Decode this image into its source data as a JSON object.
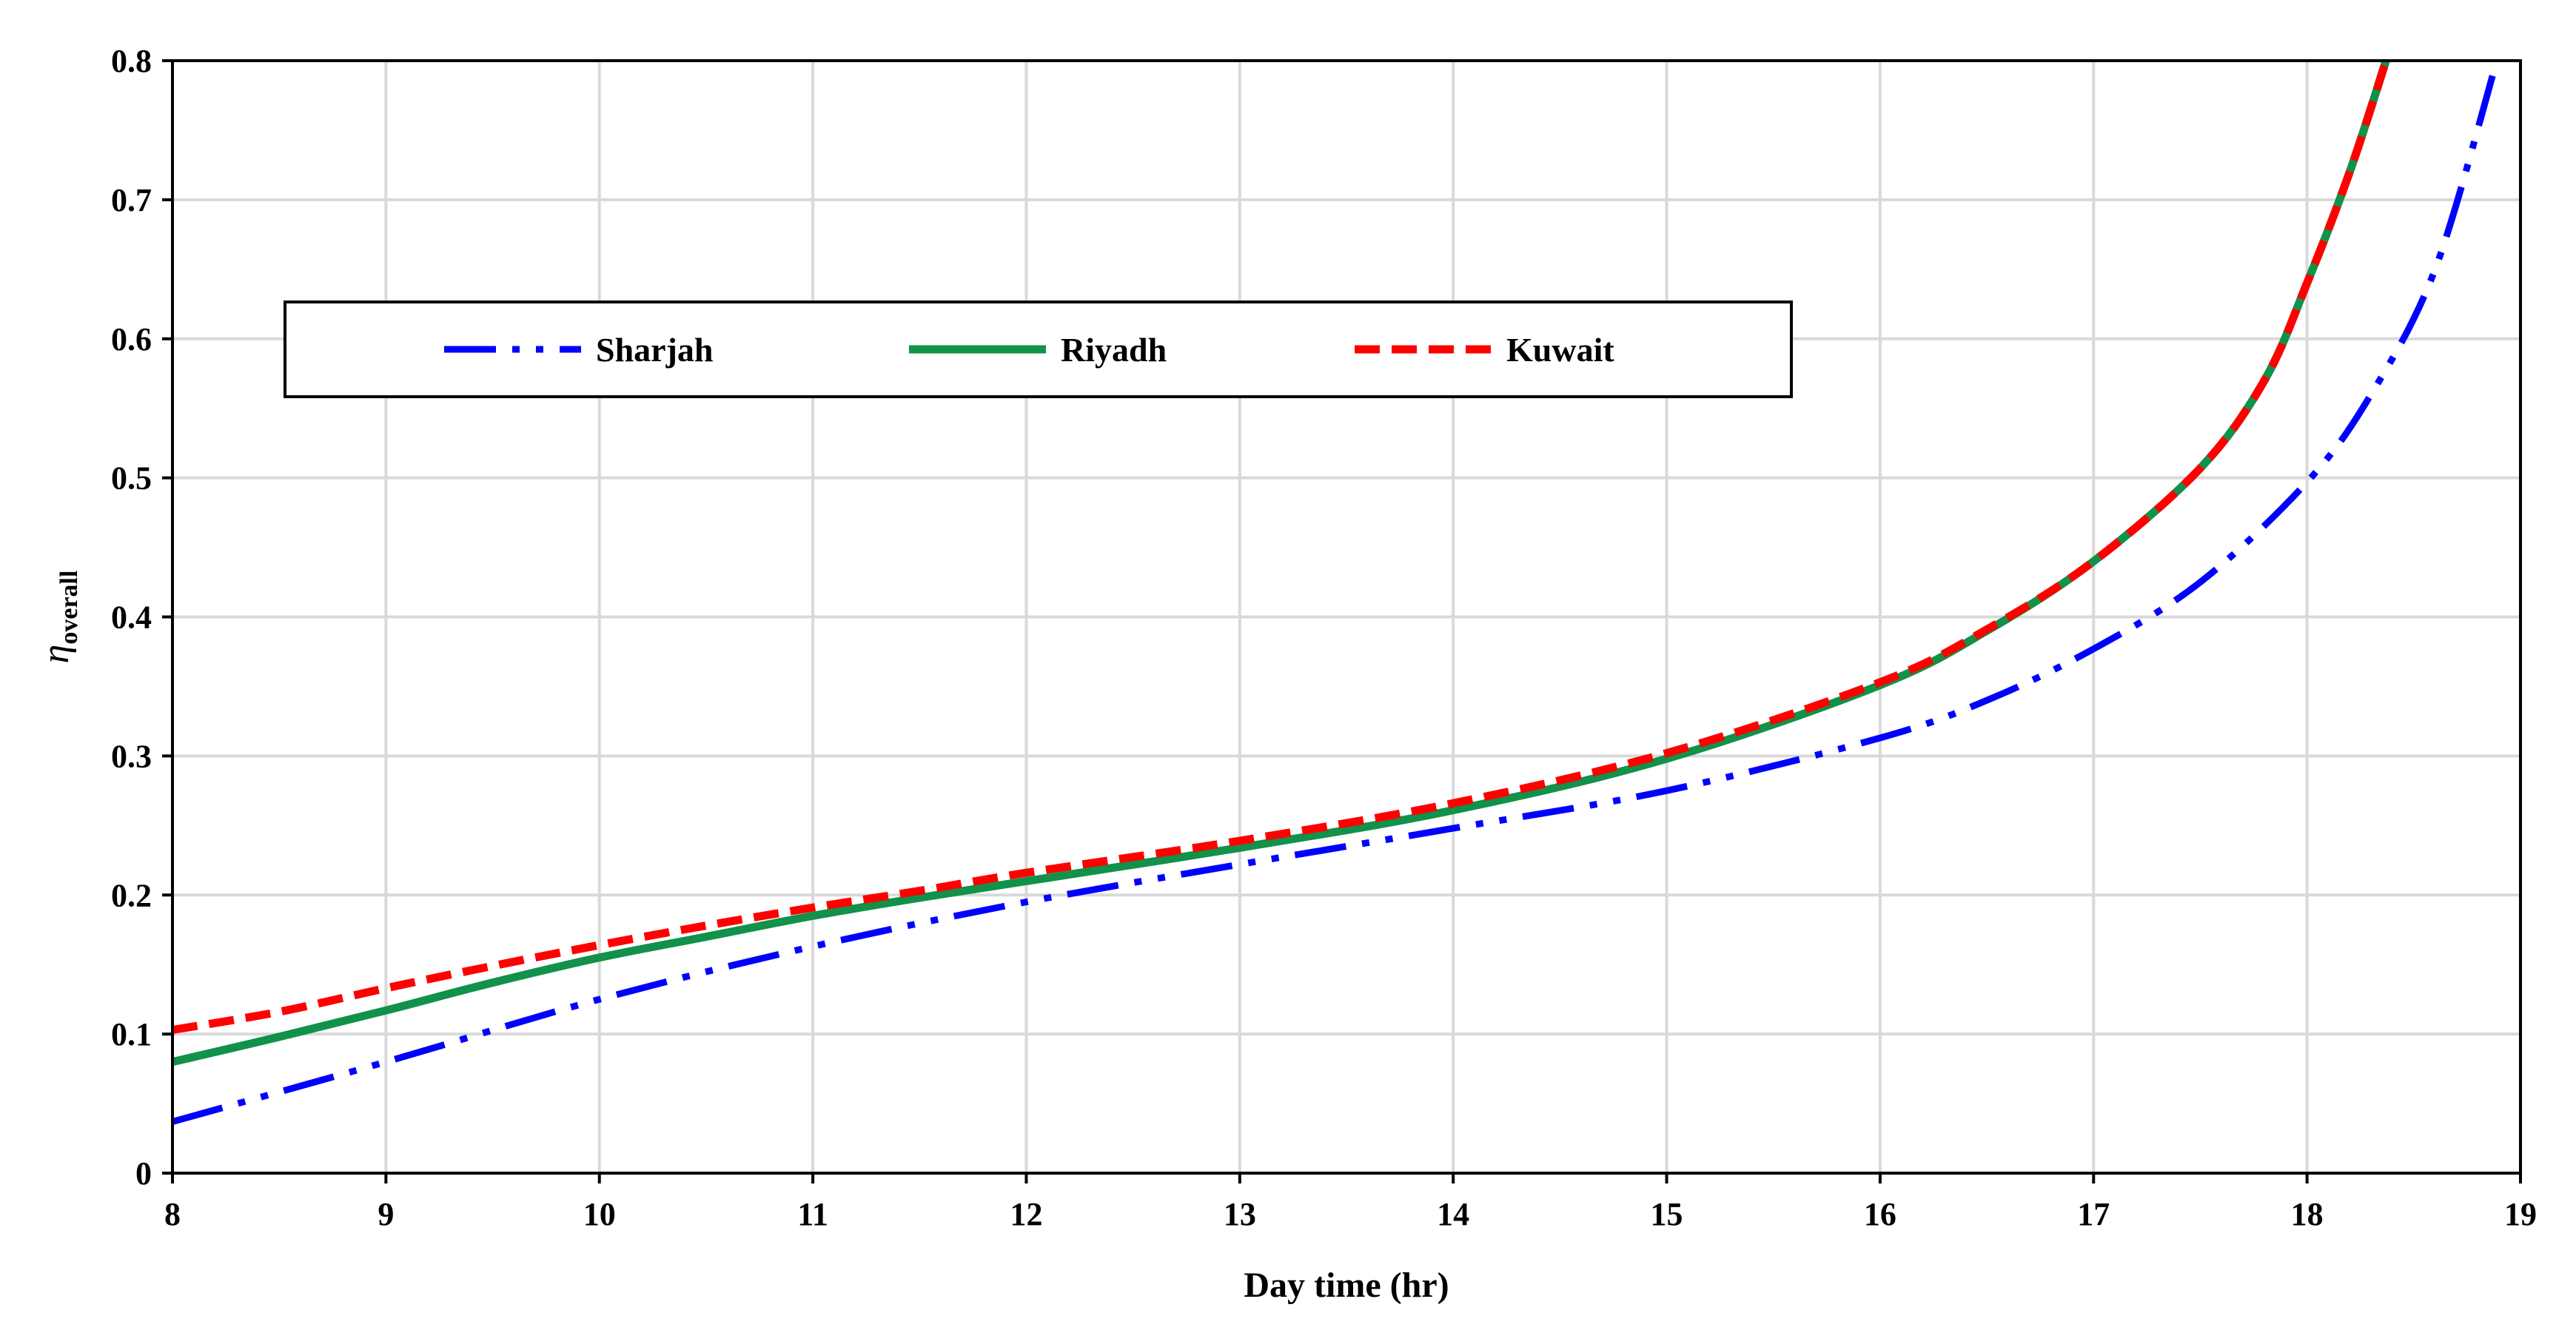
{
  "chart_data": {
    "type": "line",
    "xlabel": "Day time (hr)",
    "ylabel_main": "η",
    "ylabel_sub": "overall",
    "xlim": [
      8,
      19
    ],
    "ylim": [
      0,
      0.8
    ],
    "x_ticks": [
      "8",
      "9",
      "10",
      "11",
      "12",
      "13",
      "14",
      "15",
      "16",
      "17",
      "18",
      "19"
    ],
    "y_ticks": [
      "0",
      "0.1",
      "0.2",
      "0.3",
      "0.4",
      "0.5",
      "0.6",
      "0.7",
      "0.8"
    ],
    "grid": true,
    "legend_position": "upper-left inside plot",
    "series": [
      {
        "name": "Sharjah",
        "color": "#0000ff",
        "style": "dash-dot-dot",
        "x": [
          8,
          9,
          10,
          11,
          12,
          13,
          14,
          15,
          16,
          16.5,
          17,
          17.5,
          18,
          18.3,
          18.6,
          18.88
        ],
        "y": [
          0.037,
          0.08,
          0.125,
          0.163,
          0.195,
          0.222,
          0.248,
          0.275,
          0.313,
          0.34,
          0.377,
          0.425,
          0.497,
          0.56,
          0.65,
          0.795
        ]
      },
      {
        "name": "Riyadh",
        "color": "#119149",
        "style": "solid",
        "x": [
          8,
          8.5,
          9,
          9.5,
          10,
          10.5,
          11,
          11.5,
          12,
          13,
          14,
          15,
          16,
          16.5,
          17,
          17.5,
          17.8,
          18,
          18.2,
          18.37
        ],
        "y": [
          0.08,
          0.098,
          0.117,
          0.137,
          0.155,
          0.17,
          0.185,
          0.198,
          0.21,
          0.234,
          0.261,
          0.298,
          0.351,
          0.39,
          0.44,
          0.507,
          0.57,
          0.64,
          0.72,
          0.8
        ]
      },
      {
        "name": "Kuwait",
        "color": "#ff0000",
        "style": "dashed",
        "x": [
          8,
          8.5,
          9,
          9.5,
          10,
          10.5,
          11,
          11.5,
          12,
          13,
          14,
          15,
          16,
          16.5,
          17,
          17.5,
          17.8,
          18,
          18.2,
          18.37
        ],
        "y": [
          0.103,
          0.116,
          0.133,
          0.149,
          0.164,
          0.178,
          0.191,
          0.203,
          0.216,
          0.239,
          0.266,
          0.302,
          0.353,
          0.391,
          0.44,
          0.507,
          0.57,
          0.64,
          0.72,
          0.8
        ]
      }
    ]
  }
}
